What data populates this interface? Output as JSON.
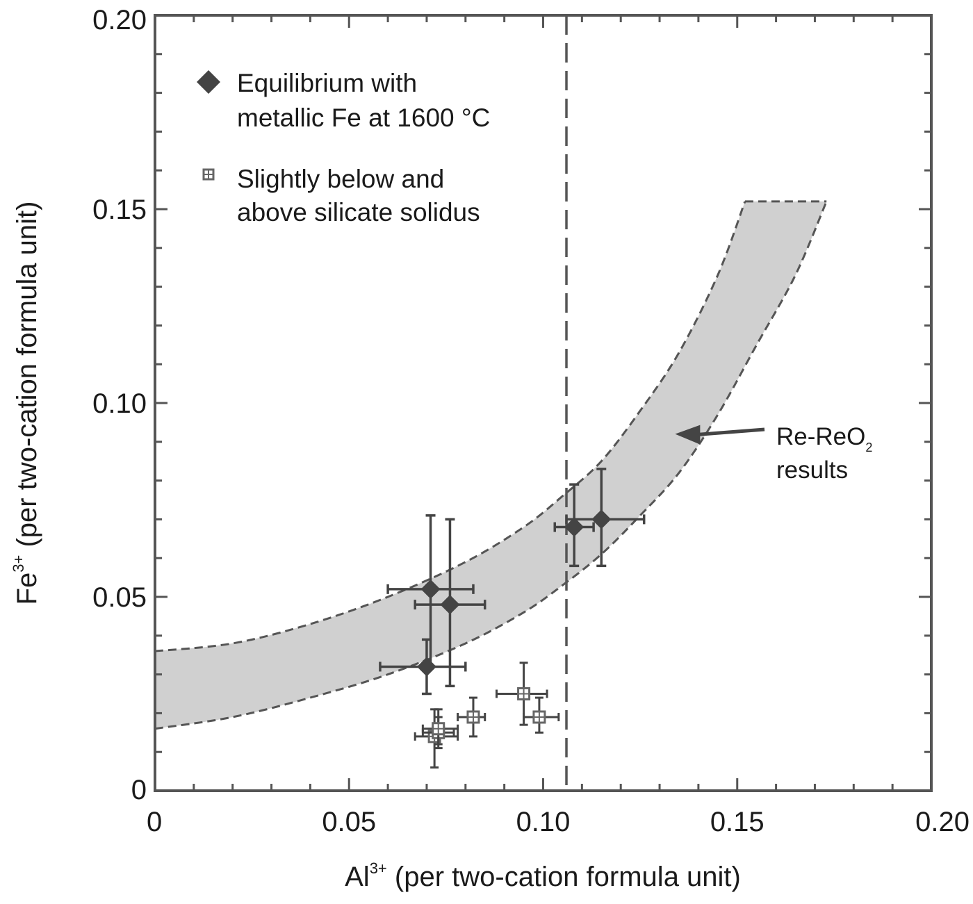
{
  "chart_data": {
    "type": "scatter",
    "xlabel": {
      "base": "Al",
      "sup": "3+",
      "rest": " (per two-cation formula unit)"
    },
    "ylabel": {
      "base": "Fe",
      "sup": "3+",
      "rest": " (per two-cation formula unit)"
    },
    "xlim": [
      0,
      0.2
    ],
    "ylim": [
      0,
      0.2
    ],
    "x_ticks": [
      {
        "value": 0,
        "label": "0"
      },
      {
        "value": 0.05,
        "label": "0.05"
      },
      {
        "value": 0.1,
        "label": "0.10"
      },
      {
        "value": 0.15,
        "label": "0.15"
      },
      {
        "value": 0.2,
        "label": "0.20"
      }
    ],
    "y_ticks": [
      {
        "value": 0,
        "label": "0"
      },
      {
        "value": 0.05,
        "label": "0.05"
      },
      {
        "value": 0.1,
        "label": "0.10"
      },
      {
        "value": 0.15,
        "label": "0.15"
      },
      {
        "value": 0.2,
        "label": "0.20"
      }
    ],
    "grid": false,
    "legend_placement": "top-left",
    "series": [
      {
        "name": "Equilibrium with metallic Fe at 1600 °C",
        "name_lines": [
          "Equilibrium with",
          "metallic Fe at 1600 °C"
        ],
        "marker": "diamond",
        "points": [
          {
            "x": 0.071,
            "y": 0.052,
            "xerr": [
              0.06,
              0.082
            ],
            "yerr": [
              0.032,
              0.071
            ]
          },
          {
            "x": 0.076,
            "y": 0.048,
            "xerr": [
              0.067,
              0.085
            ],
            "yerr": [
              0.027,
              0.07
            ]
          },
          {
            "x": 0.07,
            "y": 0.032,
            "xerr": [
              0.058,
              0.08
            ],
            "yerr": [
              0.025,
              0.039
            ]
          },
          {
            "x": 0.108,
            "y": 0.068,
            "xerr": [
              0.103,
              0.113
            ],
            "yerr": [
              0.058,
              0.079
            ]
          },
          {
            "x": 0.115,
            "y": 0.07,
            "xerr": [
              0.106,
              0.126
            ],
            "yerr": [
              0.058,
              0.083
            ]
          }
        ]
      },
      {
        "name": "Slightly below and above silicate solidus",
        "name_lines": [
          "Slightly below and",
          "above silicate solidus"
        ],
        "marker": "square",
        "points": [
          {
            "x": 0.072,
            "y": 0.014,
            "xerr": [
              0.067,
              0.078
            ],
            "yerr": [
              0.006,
              0.021
            ]
          },
          {
            "x": 0.073,
            "y": 0.015,
            "xerr": [
              0.069,
              0.077
            ],
            "yerr": [
              0.011,
              0.019
            ]
          },
          {
            "x": 0.073,
            "y": 0.016,
            "xerr": [
              0.069,
              0.078
            ],
            "yerr": [
              0.012,
              0.021
            ]
          },
          {
            "x": 0.082,
            "y": 0.019,
            "xerr": [
              0.078,
              0.085
            ],
            "yerr": [
              0.014,
              0.024
            ]
          },
          {
            "x": 0.095,
            "y": 0.025,
            "xerr": [
              0.088,
              0.101
            ],
            "yerr": [
              0.017,
              0.033
            ]
          },
          {
            "x": 0.099,
            "y": 0.019,
            "xerr": [
              0.095,
              0.104
            ],
            "yerr": [
              0.015,
              0.024
            ]
          }
        ]
      }
    ],
    "band": {
      "upper": [
        [
          0,
          0.036
        ],
        [
          0.02,
          0.038
        ],
        [
          0.04,
          0.043
        ],
        [
          0.06,
          0.05
        ],
        [
          0.08,
          0.059
        ],
        [
          0.095,
          0.068
        ],
        [
          0.105,
          0.076
        ],
        [
          0.115,
          0.085
        ],
        [
          0.125,
          0.098
        ],
        [
          0.135,
          0.113
        ],
        [
          0.145,
          0.133
        ],
        [
          0.152,
          0.152
        ]
      ],
      "top_right": [
        0.173,
        0.152
      ],
      "lower": [
        [
          0,
          0.016
        ],
        [
          0.02,
          0.019
        ],
        [
          0.04,
          0.024
        ],
        [
          0.06,
          0.03
        ],
        [
          0.08,
          0.038
        ],
        [
          0.095,
          0.046
        ],
        [
          0.105,
          0.053
        ],
        [
          0.115,
          0.061
        ],
        [
          0.125,
          0.071
        ],
        [
          0.135,
          0.082
        ],
        [
          0.145,
          0.097
        ],
        [
          0.155,
          0.115
        ],
        [
          0.165,
          0.133
        ],
        [
          0.173,
          0.152
        ]
      ],
      "fill": "#d0d0d0",
      "stroke": "#555555"
    },
    "vline": {
      "x": 0.106
    },
    "annotation": {
      "line1_base": "Re-ReO",
      "line1_sub": "2",
      "line2": "results",
      "arrow_to": [
        0.134,
        0.092
      ]
    }
  },
  "colors": {
    "axis": "#555555",
    "marker": "#444444",
    "square_marker": "#666666",
    "text": "#1a1a1a"
  }
}
